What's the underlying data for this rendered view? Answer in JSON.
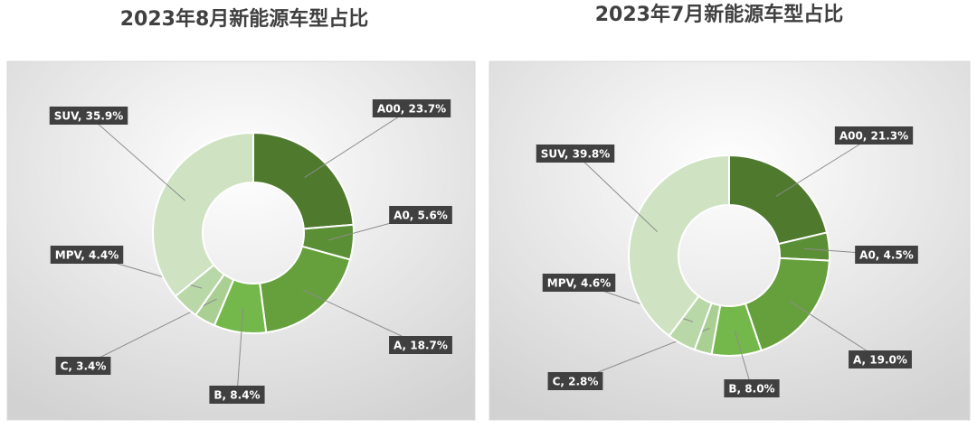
{
  "chart_data": [
    {
      "type": "donut",
      "title": "2023年8月新能源车型占比",
      "values": [
        23.7,
        5.6,
        18.7,
        8.4,
        3.4,
        4.4,
        35.9
      ],
      "value_labels": [
        "A00, 23.7%",
        "A0, 5.6%",
        "A, 18.7%",
        "B, 8.4%",
        "C, 3.4%",
        "MPV, 4.4%",
        "SUV, 35.9%"
      ],
      "colors": [
        "#4f7a2e",
        "#5b8f35",
        "#66a03d",
        "#74b84b",
        "#a9cf92",
        "#b9d8a8",
        "#cfe3c3"
      ]
    },
    {
      "type": "donut",
      "title": "2023年7月新能源车型占比",
      "values": [
        21.3,
        4.5,
        19.0,
        8.0,
        2.8,
        4.6,
        39.8
      ],
      "value_labels": [
        "A00, 21.3%",
        "A0, 4.5%",
        "A, 19.0%",
        "B, 8.0%",
        "C, 2.8%",
        "MPV, 4.6%",
        "SUV, 39.8%"
      ],
      "colors": [
        "#4f7a2e",
        "#5b8f35",
        "#66a03d",
        "#74b84b",
        "#a9cf92",
        "#b9d8a8",
        "#cfe3c3"
      ]
    }
  ]
}
